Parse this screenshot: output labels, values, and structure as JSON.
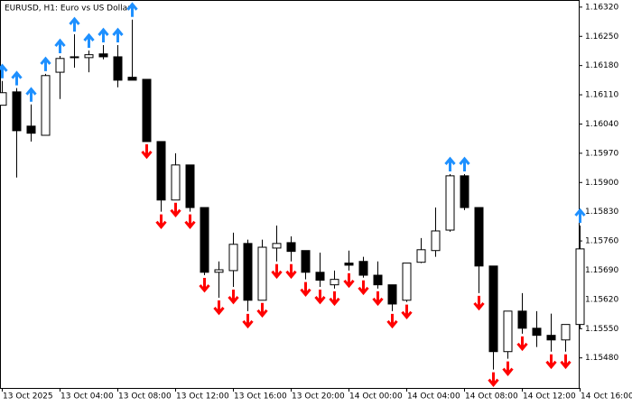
{
  "chart_data": {
    "type": "candlestick",
    "title": "EURUSD, H1:  Euro vs US Dollar",
    "categories": [
      "13 Oct 2025",
      null,
      null,
      null,
      "13 Oct 04:00",
      null,
      null,
      null,
      "13 Oct 08:00",
      null,
      null,
      null,
      "13 Oct 12:00",
      null,
      null,
      null,
      "13 Oct 16:00",
      null,
      null,
      null,
      "13 Oct 20:00",
      null,
      null,
      null,
      "14 Oct 00:00",
      null,
      null,
      null,
      "14 Oct 04:00",
      null,
      null,
      null,
      "14 Oct 08:00",
      null,
      null,
      null,
      "14 Oct 12:00",
      null,
      null,
      null,
      "14 Oct 16:00"
    ],
    "open": [
      1.16085,
      1.16117,
      1.16035,
      1.16013,
      1.16164,
      1.16201,
      1.16199,
      1.16208,
      1.16201,
      1.16152,
      1.16147,
      1.15998,
      1.15858,
      1.15942,
      1.1584,
      1.15685,
      1.15689,
      1.15754,
      1.15618,
      1.15743,
      1.15756,
      1.15737,
      1.15685,
      1.15655,
      1.15707,
      1.15711,
      1.15678,
      1.15655,
      1.15618,
      1.15709,
      1.15737,
      1.15786,
      1.15916,
      1.1584,
      1.157,
      1.15495,
      1.15592,
      1.15551,
      1.15534,
      1.15523,
      1.1556
    ],
    "high": [
      1.16143,
      1.16126,
      1.16087,
      1.1616,
      1.16203,
      1.16255,
      1.16216,
      1.16229,
      1.16229,
      1.1629,
      1.16147,
      1.15998,
      1.1597,
      1.15942,
      1.1584,
      1.15711,
      1.1578,
      1.15763,
      1.15763,
      1.15797,
      1.15771,
      1.15737,
      1.15732,
      1.15689,
      1.15737,
      1.15722,
      1.15711,
      1.15655,
      1.15707,
      1.15767,
      1.1584,
      1.1592,
      1.1592,
      1.1584,
      1.157,
      1.15592,
      1.15635,
      1.15592,
      1.15586,
      1.1556,
      1.15797
    ],
    "low": [
      1.16085,
      1.15912,
      1.15998,
      1.16013,
      1.161,
      1.16175,
      1.16164,
      1.16195,
      1.16128,
      1.16145,
      1.15998,
      1.1583,
      1.15858,
      1.1583,
      1.15678,
      1.15624,
      1.1565,
      1.15592,
      1.15618,
      1.15711,
      1.15711,
      1.15668,
      1.1565,
      1.15646,
      1.15689,
      1.15672,
      1.15646,
      1.15592,
      1.15614,
      1.15707,
      1.15722,
      1.15782,
      1.15834,
      1.15635,
      1.15452,
      1.15478,
      1.15538,
      1.15506,
      1.15495,
      1.15495,
      1.15549
    ],
    "close": [
      1.16115,
      1.16024,
      1.16018,
      1.16156,
      1.16197,
      1.16199,
      1.16206,
      1.16201,
      1.16145,
      1.16145,
      1.15998,
      1.15858,
      1.15942,
      1.1584,
      1.15685,
      1.15691,
      1.15752,
      1.15618,
      1.15745,
      1.15754,
      1.15735,
      1.15685,
      1.15666,
      1.15668,
      1.15702,
      1.15678,
      1.15655,
      1.15609,
      1.15707,
      1.15739,
      1.15784,
      1.15916,
      1.1584,
      1.157,
      1.15495,
      1.15592,
      1.15551,
      1.15534,
      1.15523,
      1.1556,
      1.15741
    ],
    "buy_signal": [
      1.16143,
      1.16126,
      1.16087,
      1.1616,
      1.16203,
      1.16255,
      1.16216,
      1.16229,
      1.16229,
      1.1629,
      null,
      null,
      null,
      null,
      null,
      null,
      null,
      null,
      null,
      null,
      null,
      null,
      null,
      null,
      null,
      null,
      null,
      null,
      null,
      null,
      null,
      1.1592,
      1.1592,
      null,
      null,
      null,
      null,
      null,
      null,
      null,
      1.15797
    ],
    "sell_signal": [
      null,
      null,
      null,
      null,
      null,
      null,
      null,
      null,
      null,
      null,
      1.15998,
      1.1583,
      1.15858,
      1.1583,
      1.15678,
      1.15624,
      1.1565,
      1.15592,
      1.15618,
      1.15711,
      1.15711,
      1.15668,
      1.1565,
      1.15646,
      1.15689,
      1.15672,
      1.15646,
      1.15592,
      1.15614,
      null,
      null,
      null,
      null,
      1.15635,
      1.15452,
      1.15478,
      1.15538,
      null,
      1.15495,
      1.15495,
      null
    ],
    "up_color": "#ffffff",
    "down_color": "#000000",
    "buy_color": "#1e90ff",
    "sell_color": "#ff0000",
    "ylim": [
      1.15408,
      1.16337
    ],
    "yticks": [
      {
        "value": 1.1632,
        "label": "1.16320"
      },
      {
        "value": 1.1625,
        "label": "1.16250"
      },
      {
        "value": 1.1618,
        "label": "1.16180"
      },
      {
        "value": 1.1611,
        "label": "1.16110"
      },
      {
        "value": 1.1604,
        "label": "1.16040"
      },
      {
        "value": 1.1597,
        "label": "1.15970"
      },
      {
        "value": 1.159,
        "label": "1.15900"
      },
      {
        "value": 1.1583,
        "label": "1.15830"
      },
      {
        "value": 1.1576,
        "label": "1.15760"
      },
      {
        "value": 1.1569,
        "label": "1.15690"
      },
      {
        "value": 1.1562,
        "label": "1.15620"
      },
      {
        "value": 1.1555,
        "label": "1.15550"
      },
      {
        "value": 1.1548,
        "label": "1.15480"
      }
    ]
  }
}
